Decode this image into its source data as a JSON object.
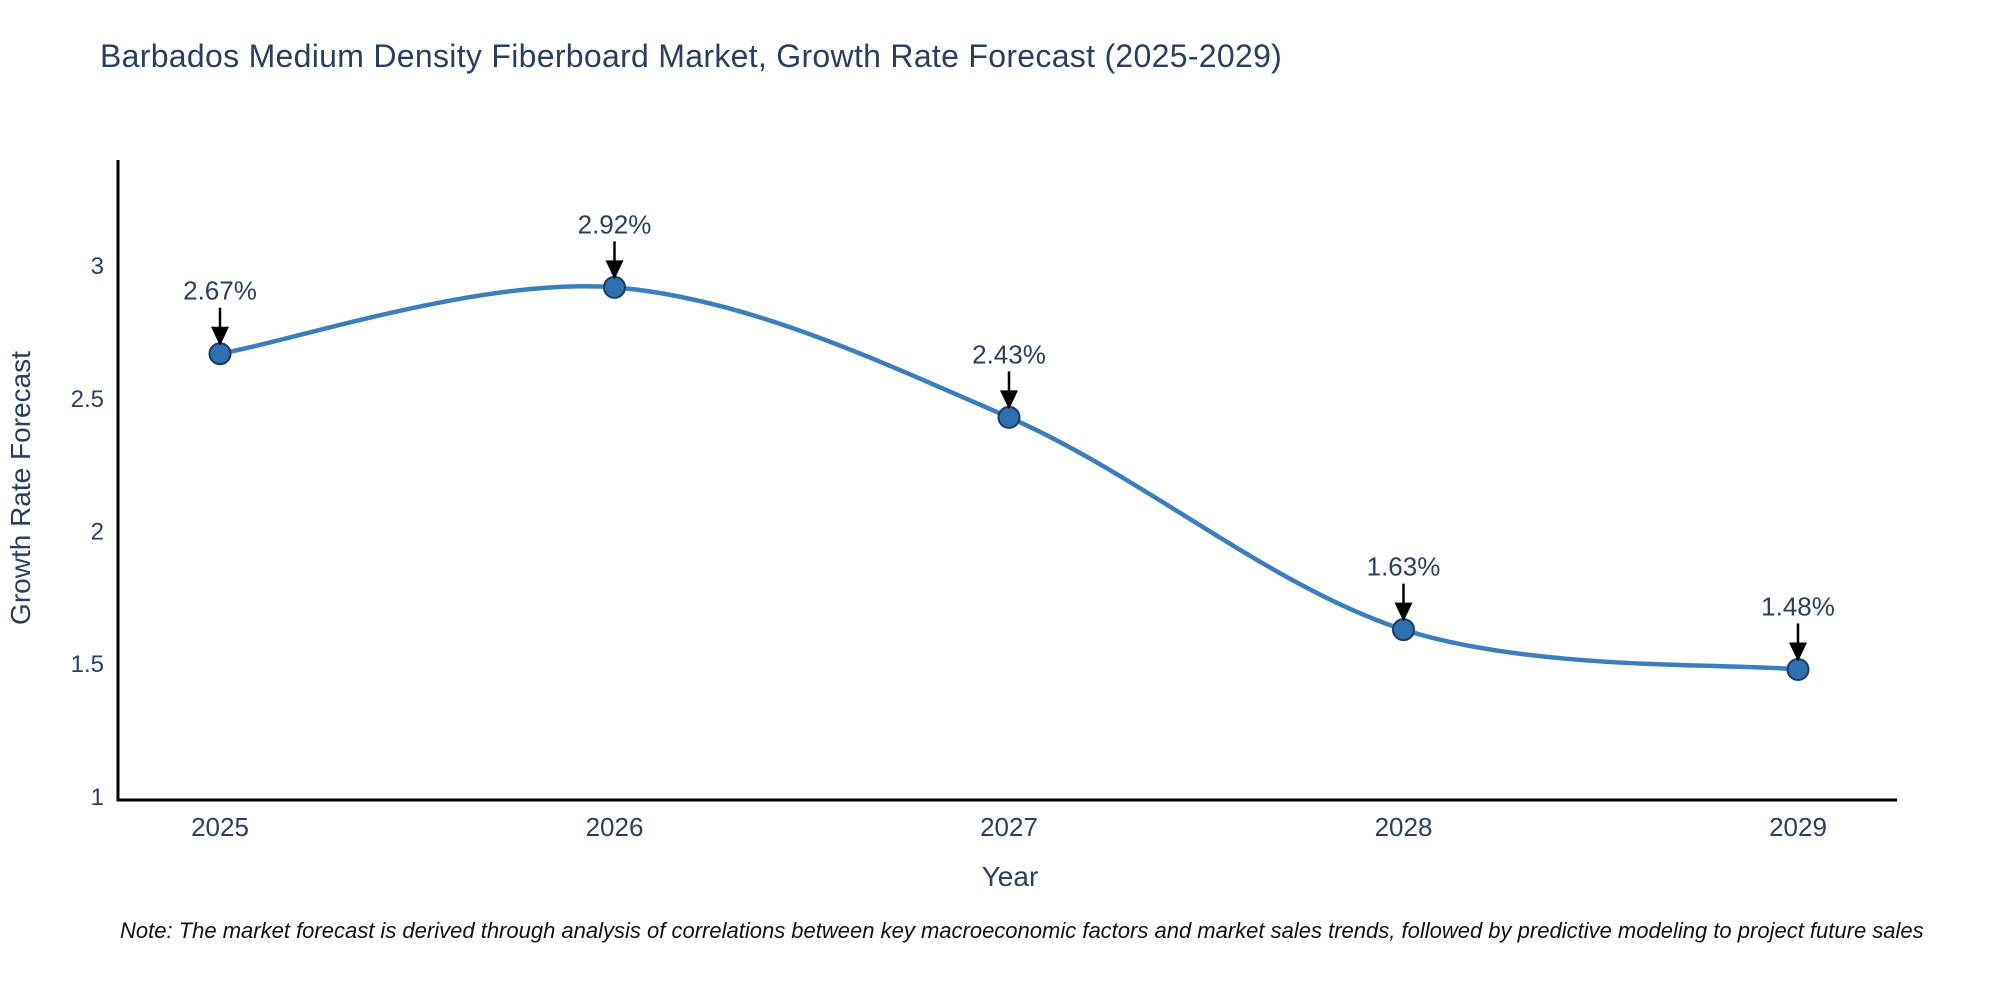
{
  "title": "Barbados Medium Density Fiberboard Market, Growth Rate Forecast (2025-2029)",
  "note": "Note: The market forecast is derived through analysis of correlations between key macroeconomic factors and market sales trends, followed by predictive modeling to project future sales",
  "chart_data": {
    "type": "line",
    "title": "Barbados Medium Density Fiberboard Market, Growth Rate Forecast (2025-2029)",
    "xlabel": "Year",
    "ylabel": "Growth Rate Forecast",
    "x": [
      2025,
      2026,
      2027,
      2028,
      2029
    ],
    "y": [
      2.67,
      2.92,
      2.43,
      1.63,
      1.48
    ],
    "point_labels": [
      "2.67%",
      "2.92%",
      "2.43%",
      "1.63%",
      "1.48%"
    ],
    "xticks": [
      "2025",
      "2026",
      "2027",
      "2028",
      "2029"
    ],
    "yticks": [
      1,
      1.5,
      2,
      2.5,
      3
    ],
    "ylim": [
      0.988,
      3.4
    ],
    "grid": false,
    "legend": "none",
    "line_shape": "spline",
    "colors": {
      "line": "#3a7ebf",
      "marker_fill": "#2f6fae",
      "marker_edge": "#1a3d61",
      "text": "#2a3f5f",
      "axis": "#000000",
      "arrow": "#000000",
      "background": "#ffffff"
    }
  }
}
